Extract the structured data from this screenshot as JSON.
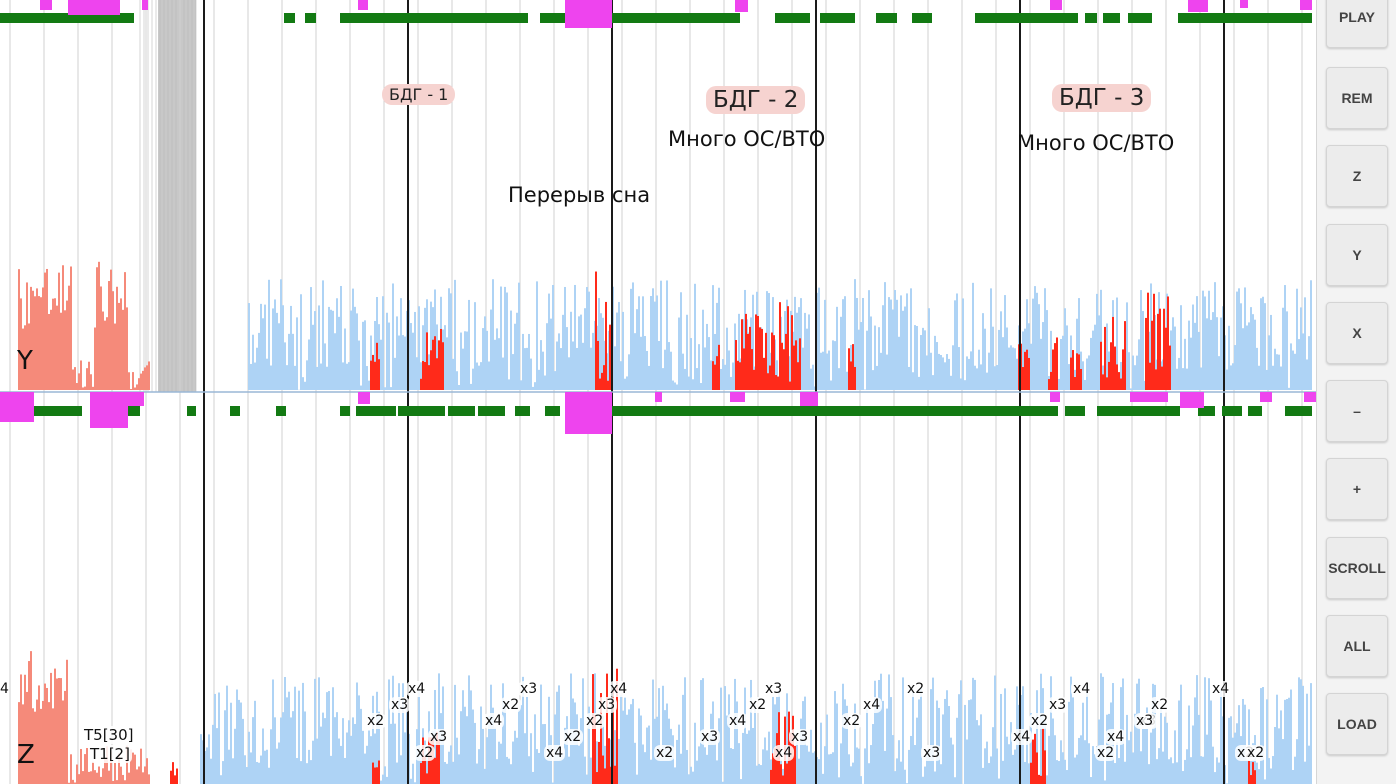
{
  "plot": {
    "y_channel_label": "Y",
    "z_channel_label": "Z",
    "stage_labels": [
      {
        "id": "bdg1",
        "text": "БДГ - 1"
      },
      {
        "id": "bdg2",
        "text": "БДГ - 2"
      },
      {
        "id": "bdg3",
        "text": "БДГ - 3"
      }
    ],
    "annotations": [
      {
        "id": "sleep_break",
        "text": "Перерыв сна"
      },
      {
        "id": "many_os_vto_2",
        "text": "Много ОС/ВТО"
      },
      {
        "id": "many_os_vto_3",
        "text": "Много ОС/ВТО"
      }
    ],
    "edge_marker": "4",
    "t5_label": "T5[30]",
    "t1_label": "T1[2]",
    "multipliers": [
      "x4",
      "x3",
      "x2",
      "x2",
      "x3",
      "x2",
      "x3",
      "x4",
      "x2",
      "x4",
      "x2",
      "x3",
      "x4",
      "x2",
      "x3",
      "x4",
      "x2",
      "x3",
      "x4",
      "x3",
      "x2",
      "x4",
      "x2",
      "x3",
      "x4",
      "x2",
      "x3",
      "x4",
      "x2",
      "x4",
      "x3",
      "x2",
      "x3",
      "x2",
      "x4",
      "x2"
    ],
    "colors": {
      "background": "#ffffff",
      "activity_normal": "#aed3f5",
      "activity_high": "#ff2a1a",
      "activity_artifact": "#f58a7a",
      "position_bar": "#137a13",
      "marker": "#ee44ee",
      "gap": "#c8c8c8",
      "major_grid": "#1a1a1a",
      "minor_grid": "#d0d0d0"
    }
  },
  "sidebar": {
    "buttons": [
      {
        "id": "play",
        "label": "PLAY"
      },
      {
        "id": "rem",
        "label": "REM"
      },
      {
        "id": "z",
        "label": "Z"
      },
      {
        "id": "y",
        "label": "Y"
      },
      {
        "id": "x",
        "label": "X"
      },
      {
        "id": "minus",
        "label": "–"
      },
      {
        "id": "plus",
        "label": "+"
      },
      {
        "id": "scroll",
        "label": "SCROLL"
      },
      {
        "id": "all",
        "label": "ALL"
      },
      {
        "id": "load",
        "label": "LOAD"
      }
    ]
  }
}
